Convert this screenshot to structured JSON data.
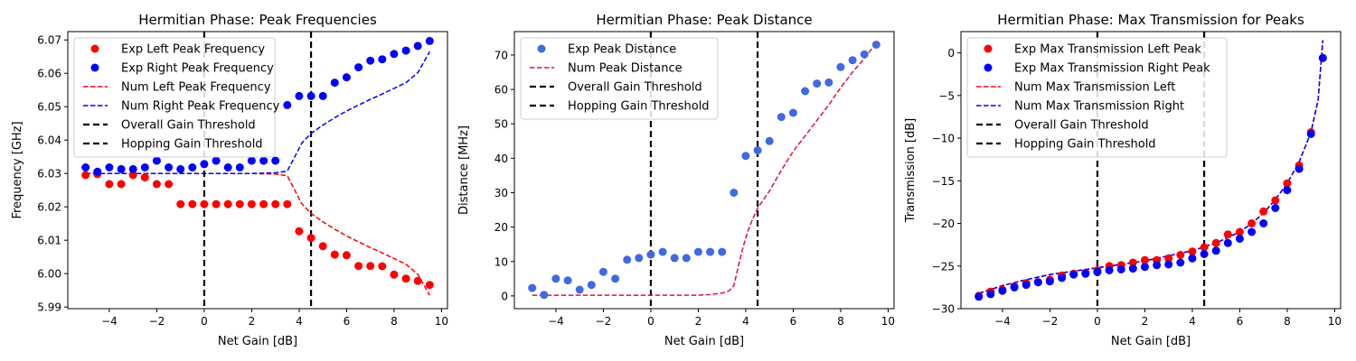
{
  "figure": {
    "background": "#ffffff"
  },
  "chart_data": [
    {
      "type": "scatter",
      "title": "Hermitian Phase: Peak Frequencies",
      "xlabel": "Net Gain [dB]",
      "ylabel": "Frequency [GHz]",
      "xlim": [
        -5.75,
        10.25
      ],
      "ylim": [
        5.9895,
        6.0725
      ],
      "xticks": [
        -4,
        -2,
        0,
        2,
        4,
        6,
        8,
        10
      ],
      "xtick_labels": [
        "−4",
        "−2",
        "0",
        "2",
        "4",
        "6",
        "8",
        "10"
      ],
      "yticks": [
        5.99,
        6.0,
        6.01,
        6.02,
        6.03,
        6.04,
        6.05,
        6.06,
        6.07
      ],
      "ytick_labels": [
        "5.99",
        "6.00",
        "6.01",
        "6.02",
        "6.03",
        "6.04",
        "6.05",
        "6.06",
        "6.07"
      ],
      "legend_position": "upper-left",
      "vlines": [
        {
          "name": "Overall Gain Threshold",
          "x": 0,
          "color": "#000000"
        },
        {
          "name": "Hopping Gain Threshold",
          "x": 4.5,
          "color": "#000000"
        }
      ],
      "scatter_series": [
        {
          "name": "Exp Left Peak Frequency",
          "color": "#ff0000",
          "x": [
            -5.0,
            -4.5,
            -4.0,
            -3.5,
            -3.0,
            -2.5,
            -2.0,
            -1.5,
            -1.0,
            -0.5,
            0.0,
            0.5,
            1.0,
            1.5,
            2.0,
            2.5,
            3.0,
            3.5,
            4.0,
            4.5,
            5.0,
            5.5,
            6.0,
            6.5,
            7.0,
            7.5,
            8.0,
            8.5,
            9.0,
            9.5
          ],
          "y": [
            6.0295,
            6.0298,
            6.0268,
            6.0268,
            6.0295,
            6.0288,
            6.0268,
            6.0268,
            6.0208,
            6.0208,
            6.0208,
            6.0208,
            6.0208,
            6.0208,
            6.0208,
            6.0208,
            6.0208,
            6.0208,
            6.0127,
            6.0107,
            6.0082,
            6.0057,
            6.0055,
            6.0023,
            6.0023,
            6.0022,
            5.9997,
            5.9985,
            5.9978,
            5.9966
          ]
        },
        {
          "name": "Exp Right Peak Frequency",
          "color": "#0000ff",
          "x": [
            -5.0,
            -4.5,
            -4.0,
            -3.5,
            -3.0,
            -2.5,
            -2.0,
            -1.5,
            -1.0,
            -0.5,
            0.0,
            0.5,
            1.0,
            1.5,
            2.0,
            2.5,
            3.0,
            3.5,
            4.0,
            4.5,
            5.0,
            5.5,
            6.0,
            6.5,
            7.0,
            7.5,
            8.0,
            8.5,
            9.0,
            9.5
          ],
          "y": [
            6.0318,
            6.0305,
            6.0318,
            6.0313,
            6.0313,
            6.0318,
            6.0338,
            6.0318,
            6.0313,
            6.0318,
            6.0328,
            6.0338,
            6.0318,
            6.0318,
            6.0338,
            6.0338,
            6.0338,
            6.0505,
            6.0532,
            6.0532,
            6.0532,
            6.0572,
            6.0588,
            6.0618,
            6.0638,
            6.0642,
            6.0658,
            6.0668,
            6.0682,
            6.0697
          ]
        }
      ],
      "line_series": [
        {
          "name": "Num Left Peak Frequency",
          "color": "#ff0000",
          "x": [
            -5.0,
            -4.0,
            -3.0,
            -2.0,
            -1.0,
            0.0,
            1.0,
            2.0,
            3.0,
            3.5,
            3.7,
            3.9,
            4.1,
            4.3,
            4.5,
            5.0,
            5.5,
            6.0,
            6.5,
            7.0,
            7.5,
            8.0,
            8.5,
            9.0,
            9.5
          ],
          "y": [
            6.03,
            6.03,
            6.03,
            6.03,
            6.03,
            6.03,
            6.03,
            6.03,
            6.0298,
            6.0293,
            6.0265,
            6.0238,
            6.021,
            6.0195,
            6.018,
            6.0155,
            6.0133,
            6.0113,
            6.0095,
            6.0078,
            6.0062,
            6.0045,
            6.0028,
            5.9998,
            5.9935
          ]
        },
        {
          "name": "Num Right Peak Frequency",
          "color": "#0000ff",
          "x": [
            -5.0,
            -4.0,
            -3.0,
            -2.0,
            -1.0,
            0.0,
            1.0,
            2.0,
            3.0,
            3.5,
            3.7,
            3.9,
            4.1,
            4.3,
            4.5,
            5.0,
            5.5,
            6.0,
            6.5,
            7.0,
            7.5,
            8.0,
            8.5,
            9.0,
            9.5
          ],
          "y": [
            6.03,
            6.03,
            6.03,
            6.03,
            6.03,
            6.03,
            6.03,
            6.03,
            6.0302,
            6.0307,
            6.0335,
            6.0362,
            6.039,
            6.0405,
            6.042,
            6.0445,
            6.0467,
            6.0487,
            6.0505,
            6.0522,
            6.0538,
            6.0555,
            6.0572,
            6.0602,
            6.0665
          ]
        }
      ]
    },
    {
      "type": "scatter",
      "title": "Hermitian Phase: Peak Distance",
      "xlabel": "Net Gain [dB]",
      "ylabel": "Distance [MHz]",
      "xlim": [
        -5.75,
        10.25
      ],
      "ylim": [
        -3.7,
        76.8
      ],
      "xticks": [
        -4,
        -2,
        0,
        2,
        4,
        6,
        8,
        10
      ],
      "xtick_labels": [
        "−4",
        "−2",
        "0",
        "2",
        "4",
        "6",
        "8",
        "10"
      ],
      "yticks": [
        0,
        10,
        20,
        30,
        40,
        50,
        60,
        70
      ],
      "ytick_labels": [
        "0",
        "10",
        "20",
        "30",
        "40",
        "50",
        "60",
        "70"
      ],
      "legend_position": "upper-left",
      "vlines": [
        {
          "name": "Overall Gain Threshold",
          "x": 0,
          "color": "#000000"
        },
        {
          "name": "Hopping Gain Threshold",
          "x": 4.5,
          "color": "#000000"
        }
      ],
      "scatter_series": [
        {
          "name": "Exp Peak Distance",
          "color": "#4169e1",
          "x": [
            -5.0,
            -4.5,
            -4.0,
            -3.5,
            -3.0,
            -2.5,
            -2.0,
            -1.5,
            -1.0,
            -0.5,
            0.0,
            0.5,
            1.0,
            1.5,
            2.0,
            2.5,
            3.0,
            3.5,
            4.0,
            4.5,
            5.0,
            5.5,
            6.0,
            6.5,
            7.0,
            7.5,
            8.0,
            8.5,
            9.0,
            9.5
          ],
          "y": [
            2.3,
            0.3,
            5.0,
            4.5,
            1.8,
            3.2,
            7.0,
            5.0,
            10.5,
            11.0,
            12.0,
            12.8,
            11.0,
            11.0,
            12.8,
            12.8,
            12.8,
            30.0,
            40.7,
            42.3,
            45.0,
            52.0,
            53.2,
            59.5,
            61.7,
            62.0,
            66.5,
            68.5,
            70.2,
            73.0
          ]
        }
      ],
      "line_series": [
        {
          "name": "Num Peak Distance",
          "color": "#dc143c",
          "x": [
            -5.0,
            -4.0,
            -3.0,
            -2.0,
            -1.0,
            0.0,
            1.0,
            2.0,
            2.5,
            3.0,
            3.3,
            3.5,
            3.7,
            3.9,
            4.1,
            4.3,
            4.5,
            5.0,
            5.5,
            6.0,
            6.5,
            7.0,
            7.5,
            8.0,
            8.5,
            9.0,
            9.5
          ],
          "y": [
            0.2,
            0.2,
            0.2,
            0.2,
            0.2,
            0.2,
            0.2,
            0.2,
            0.4,
            0.8,
            1.5,
            3.0,
            9.0,
            14.5,
            19.0,
            22.5,
            25.5,
            30.5,
            36.5,
            42.0,
            46.5,
            51.0,
            55.5,
            60.5,
            65.0,
            69.0,
            73.5
          ]
        }
      ]
    },
    {
      "type": "scatter",
      "title": "Hermitian Phase: Max Transmission for Peaks",
      "xlabel": "Net Gain [dB]",
      "ylabel": "Transmission [dB]",
      "xlim": [
        -5.75,
        10.25
      ],
      "ylim": [
        -30.0,
        2.5
      ],
      "xticks": [
        -4,
        -2,
        0,
        2,
        4,
        6,
        8,
        10
      ],
      "xtick_labels": [
        "−4",
        "−2",
        "0",
        "2",
        "4",
        "6",
        "8",
        "10"
      ],
      "yticks": [
        -30,
        -25,
        -20,
        -15,
        -10,
        -5,
        0
      ],
      "ytick_labels": [
        "−30",
        "−25",
        "−20",
        "−15",
        "−10",
        "−5",
        "0"
      ],
      "legend_position": "upper-left",
      "vlines": [
        {
          "name": "Overall Gain Threshold",
          "x": 0,
          "color": "#000000"
        },
        {
          "name": "Hopping Gain Threshold",
          "x": 4.5,
          "color": "#000000"
        }
      ],
      "scatter_series": [
        {
          "name": "Exp Max Transmission Left Peak",
          "color": "#ff0000",
          "x": [
            -5.0,
            -4.5,
            -4.0,
            -3.5,
            -3.0,
            -2.5,
            -2.0,
            -1.5,
            -1.0,
            -0.5,
            0.0,
            0.5,
            1.0,
            1.5,
            2.0,
            2.5,
            3.0,
            3.5,
            4.0,
            4.5,
            5.0,
            5.5,
            6.0,
            6.5,
            7.0,
            7.5,
            8.0,
            8.5,
            9.0,
            9.5
          ],
          "y": [
            -28.5,
            -28.0,
            -27.8,
            -27.4,
            -27.0,
            -26.9,
            -26.6,
            -26.1,
            -25.9,
            -25.8,
            -25.5,
            -25.0,
            -24.9,
            -24.6,
            -24.3,
            -24.3,
            -24.1,
            -23.7,
            -23.3,
            -22.8,
            -22.3,
            -21.3,
            -21.0,
            -20.0,
            -18.6,
            -17.3,
            -15.3,
            -13.2,
            -9.3,
            -0.6
          ]
        },
        {
          "name": "Exp Max Transmission Right Peak",
          "color": "#0000ff",
          "x": [
            -5.0,
            -4.5,
            -4.0,
            -3.5,
            -3.0,
            -2.5,
            -2.0,
            -1.5,
            -1.0,
            -0.5,
            0.0,
            0.5,
            1.0,
            1.5,
            2.0,
            2.5,
            3.0,
            3.5,
            4.0,
            4.5,
            5.0,
            5.5,
            6.0,
            6.5,
            7.0,
            7.5,
            8.0,
            8.5,
            9.0,
            9.5
          ],
          "y": [
            -28.6,
            -28.3,
            -27.9,
            -27.5,
            -27.2,
            -26.9,
            -26.8,
            -26.4,
            -26.0,
            -25.9,
            -25.7,
            -25.5,
            -25.4,
            -25.3,
            -25.1,
            -24.9,
            -24.8,
            -24.6,
            -24.1,
            -23.6,
            -23.2,
            -22.3,
            -21.8,
            -21.0,
            -20.0,
            -18.2,
            -16.1,
            -13.6,
            -9.5,
            -0.6
          ]
        }
      ],
      "line_series": [
        {
          "name": "Num Max Transmission Left",
          "color": "#ff0000",
          "x": [
            -5.0,
            -4.0,
            -3.0,
            -2.0,
            -1.0,
            0.0,
            1.0,
            2.0,
            3.0,
            4.0,
            5.0,
            6.0,
            6.5,
            7.0,
            7.5,
            8.0,
            8.5,
            9.0,
            9.3,
            9.5
          ],
          "y": [
            -28.2,
            -27.3,
            -26.6,
            -26.0,
            -25.6,
            -25.2,
            -24.8,
            -24.4,
            -23.8,
            -23.2,
            -22.3,
            -21.0,
            -20.0,
            -18.8,
            -17.2,
            -15.3,
            -12.8,
            -9.3,
            -5.5,
            1.5
          ]
        },
        {
          "name": "Num Max Transmission Right",
          "color": "#0000ff",
          "x": [
            -5.0,
            -4.0,
            -3.0,
            -2.0,
            -1.0,
            0.0,
            1.0,
            2.0,
            3.0,
            4.0,
            5.0,
            6.0,
            6.5,
            7.0,
            7.5,
            8.0,
            8.5,
            9.0,
            9.3,
            9.5
          ],
          "y": [
            -28.2,
            -27.3,
            -26.6,
            -26.0,
            -25.6,
            -25.2,
            -24.8,
            -24.4,
            -23.8,
            -23.2,
            -22.3,
            -21.0,
            -20.0,
            -18.8,
            -17.2,
            -15.3,
            -12.8,
            -9.3,
            -5.5,
            1.5
          ]
        }
      ]
    }
  ]
}
